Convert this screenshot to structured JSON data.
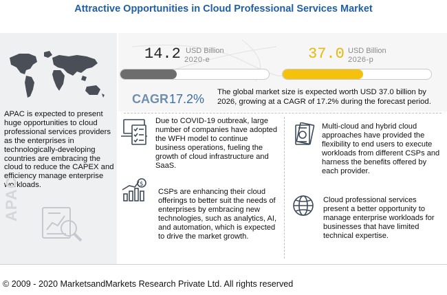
{
  "title": "Attractive Opportunities in Cloud Professional Services Market",
  "market_2020": {
    "value": "14.2",
    "unit": "USD Billion",
    "year": "2020-e",
    "fill_fraction": 0.38
  },
  "market_2026": {
    "value": "37.0",
    "unit": "USD Billion",
    "year": "2026-p",
    "fill_fraction": 1.0
  },
  "cagr": {
    "label": "CAGR",
    "value": "17.2%",
    "text": "The global market size is expected worth USD 37.0 billion  by 2026, growing at a CAGR of 17.2% during the forecast period."
  },
  "apac": {
    "text": "APAC is expected to present huge opportunities to cloud professional services providers as the enterprises in technologically-developing countries are embracing the cloud to reduce the CAPEX and efficiency manage enterprise workloads.",
    "watermark": "APAC"
  },
  "points": {
    "covid": "Due to COVID-19 outbreak, large number of companies have adopted the WFH model to continue business operations, fueling the growth of cloud infrastructure and SaaS.",
    "csp": "CSPs are enhancing their cloud offerings to better suit the needs of enterprises by embracing new technologies, such as analytics, AI, and automation, which is expected to drive the market growth.",
    "multi": "Multi-cloud and hybrid cloud approaches have provided the flexibility to end users to execute workloads from different CSPs and harness the benefits offered by each provider.",
    "cloud": "Cloud professional services present a better opportunity to manage enterprise workloads for businesses that have limited technical expertise."
  },
  "icons": {
    "map": "world-map-icon",
    "analytics": "analytics-magnifier-icon",
    "covid": "laptop-checklist-icon",
    "csp": "dollar-growth-chart-icon",
    "multi": "cash-money-icon",
    "cloud": "globe-icon"
  },
  "colors": {
    "title": "#1f5fa8",
    "bar_2020": "#6d6d6d",
    "bar_2026": "#f4c20d",
    "value_2026": "#e8b80a",
    "cagr": "#3a6ea5"
  },
  "copyright": "© 2009 - 2020 MarketsandMarkets Research Private Ltd. All rights reserved"
}
